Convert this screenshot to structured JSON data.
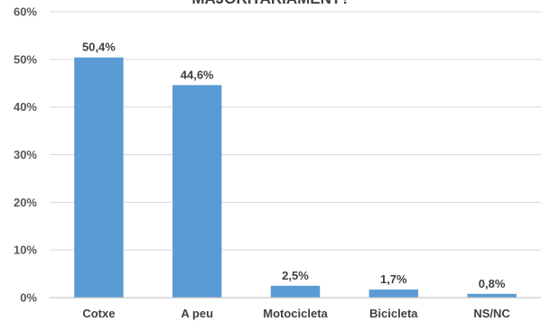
{
  "chart_data": {
    "type": "bar",
    "title": "MAJORITARIAMENT?",
    "categories": [
      "Cotxe",
      "A peu",
      "Motocicleta",
      "Bicicleta",
      "NS/NC"
    ],
    "values": [
      50.4,
      44.6,
      2.5,
      1.7,
      0.8
    ],
    "data_labels": [
      "50,4%",
      "44,6%",
      "2,5%",
      "1,7%",
      "0,8%"
    ],
    "y_ticks": [
      0,
      10,
      20,
      30,
      40,
      50,
      60
    ],
    "y_tick_labels": [
      "0%",
      "10%",
      "20%",
      "30%",
      "40%",
      "50%",
      "60%"
    ],
    "ylim": [
      0,
      60
    ],
    "xlabel": "",
    "ylabel": "",
    "grid": true,
    "legend": "none",
    "bar_color": "#5b9bd5"
  }
}
